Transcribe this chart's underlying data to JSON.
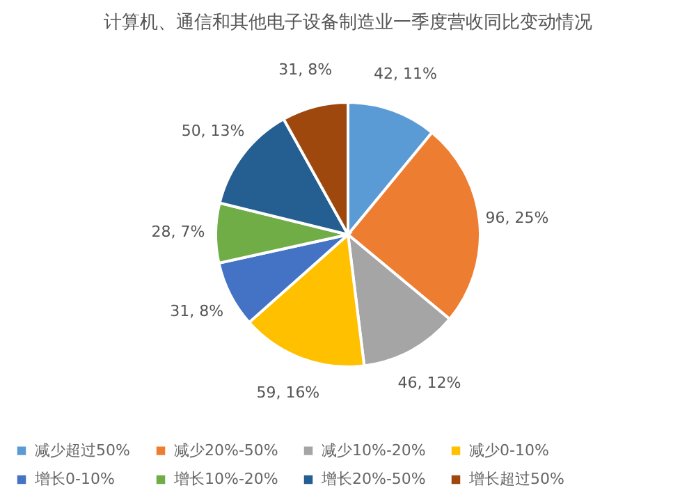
{
  "chart_data": {
    "type": "pie",
    "title": "计算机、通信和其他电子设备制造业一季度营收同比变动情况",
    "categories": [
      "减少超过50%",
      "减少20%-50%",
      "减少10%-20%",
      "减少0-10%",
      "增长0-10%",
      "增长10%-20%",
      "增长20%-50%",
      "增长超过50%"
    ],
    "values": [
      42,
      96,
      46,
      59,
      31,
      28,
      50,
      31
    ],
    "value_labels": [
      "42, 11%",
      "96, 25%",
      "46, 12%",
      "59, 16%",
      "31, 8%",
      "28, 7%",
      "50, 13%",
      "31, 8%"
    ],
    "colors": [
      "#5b9bd5",
      "#ed7d31",
      "#a5a5a5",
      "#ffc000",
      "#4472c4",
      "#70ad47",
      "#255e91",
      "#9e480e"
    ],
    "legend": "bottom"
  }
}
